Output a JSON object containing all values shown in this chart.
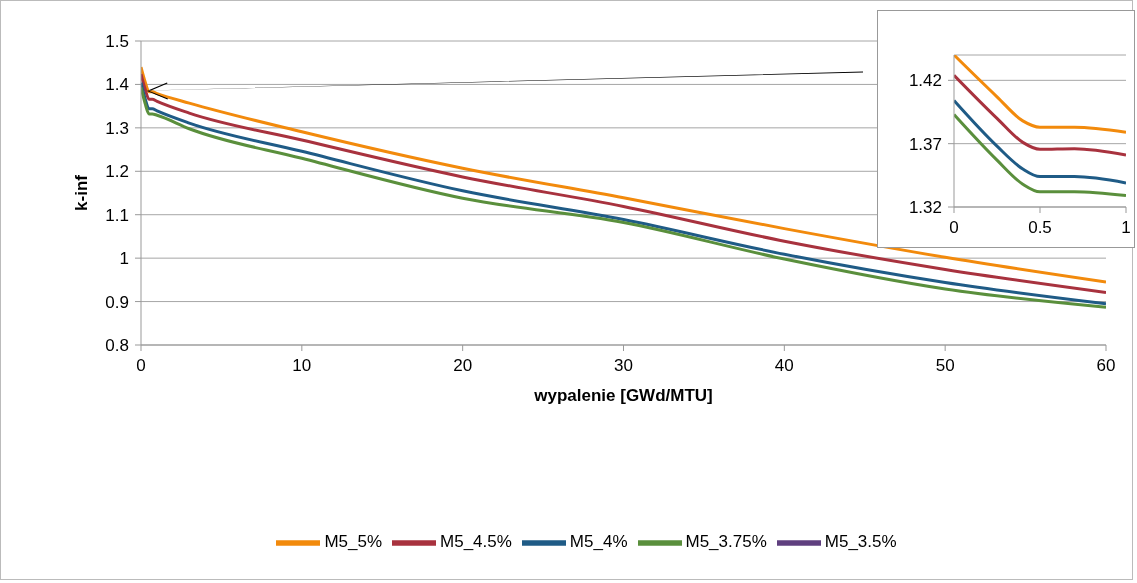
{
  "chart_data": [
    {
      "type": "line",
      "xlabel": "wypalenie [GWd/MTU]",
      "ylabel": "k-inf",
      "x": [
        0,
        0.25,
        0.5,
        0.7,
        1,
        3,
        10,
        20,
        30,
        40,
        50,
        60
      ],
      "xlim": [
        0,
        60
      ],
      "xticks": [
        0,
        10,
        20,
        30,
        40,
        50,
        60
      ],
      "ylim": [
        0.8,
        1.5
      ],
      "yticks": [
        0.8,
        0.9,
        1,
        1.1,
        1.2,
        1.3,
        1.4,
        1.5
      ],
      "grid": "y",
      "legend": "bottom",
      "marker": "none",
      "series": [
        {
          "name": "M5_5%",
          "color": "#f28a0c",
          "values": [
            1.44,
            1.407,
            1.383,
            1.383,
            1.379,
            1.357,
            1.291,
            1.207,
            1.139,
            1.068,
            1.002,
            0.945
          ]
        },
        {
          "name": "M5_4.5%",
          "color": "#a8323e",
          "values": [
            1.424,
            1.39,
            1.366,
            1.366,
            1.361,
            1.334,
            1.272,
            1.187,
            1.119,
            1.039,
            0.974,
            0.921
          ]
        },
        {
          "name": "M5_4%",
          "color": "#1f5b86",
          "values": [
            1.404,
            1.368,
            1.344,
            1.344,
            1.339,
            1.311,
            1.246,
            1.155,
            1.089,
            1.009,
            0.944,
            0.895
          ]
        },
        {
          "name": "M5_3.75%",
          "color": "#5a8f3c",
          "values": [
            1.393,
            1.357,
            1.332,
            1.332,
            1.329,
            1.298,
            1.23,
            1.138,
            1.082,
            0.998,
            0.929,
            0.887
          ]
        },
        {
          "name": "M5_3.5%",
          "color": "#5f3f7f",
          "values": [
            null,
            null,
            null,
            null,
            null,
            null,
            null,
            null,
            null,
            null,
            null,
            null
          ]
        }
      ]
    },
    {
      "type": "line",
      "x": [
        0,
        0.25,
        0.4,
        0.5,
        0.7,
        1
      ],
      "xlim": [
        0,
        1
      ],
      "xticks": [
        0,
        0.5,
        1
      ],
      "ylim": [
        1.32,
        1.44
      ],
      "yticks": [
        1.32,
        1.37,
        1.42
      ],
      "grid": "y",
      "marker": "none",
      "series": [
        {
          "color": "#f28a0c",
          "values": [
            1.44,
            1.407,
            1.388,
            1.383,
            1.383,
            1.379
          ]
        },
        {
          "color": "#a8323e",
          "values": [
            1.424,
            1.39,
            1.371,
            1.3655,
            1.366,
            1.361
          ]
        },
        {
          "color": "#1f5b86",
          "values": [
            1.404,
            1.368,
            1.35,
            1.344,
            1.344,
            1.339
          ]
        },
        {
          "color": "#5a8f3c",
          "values": [
            1.393,
            1.357,
            1.338,
            1.332,
            1.332,
            1.329
          ]
        }
      ]
    }
  ]
}
